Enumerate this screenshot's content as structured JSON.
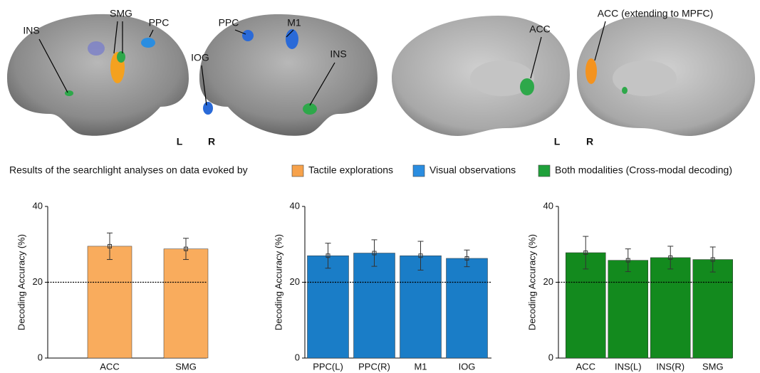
{
  "brain_figure": {
    "labels": [
      "INS",
      "SMG",
      "PPC",
      "PPC",
      "M1",
      "IOG",
      "INS",
      "L",
      "R",
      "ACC",
      "ACC (extending to MPFC)",
      "L",
      "R"
    ]
  },
  "legend": {
    "title": "Results of the searchlight analyses on data evoked by",
    "items": [
      {
        "label": "Tactile explorations",
        "color": "#f7a24b"
      },
      {
        "label": "Visual observations",
        "color": "#2a8de0"
      },
      {
        "label": "Both modalities (Cross-modal decoding)",
        "color": "#1fa03a"
      }
    ]
  },
  "chart_data": [
    {
      "type": "bar",
      "y_label": "Decoding Accuracy (%)",
      "categories": [
        "ACC",
        "SMG"
      ],
      "values": [
        29.5,
        28.8
      ],
      "errors": [
        3.5,
        2.8
      ],
      "color": "#f9ac5d",
      "ylim": [
        0,
        40
      ],
      "yticks": [
        0,
        20,
        40
      ],
      "reference_line": 20
    },
    {
      "type": "bar",
      "y_label": "Decoding Accuracy (%)",
      "categories": [
        "PPC(L)",
        "PPC(R)",
        "M1",
        "IOG"
      ],
      "values": [
        27,
        27.7,
        27,
        26.3
      ],
      "errors": [
        3.3,
        3.5,
        3.8,
        2.2
      ],
      "color": "#1a7dc7",
      "ylim": [
        0,
        40
      ],
      "yticks": [
        0,
        20,
        40
      ],
      "reference_line": 20
    },
    {
      "type": "bar",
      "y_label": "Decoding Accuracy (%)",
      "categories": [
        "ACC",
        "INS(L)",
        "INS(R)",
        "SMG"
      ],
      "values": [
        27.8,
        25.8,
        26.5,
        26
      ],
      "errors": [
        4.3,
        3,
        3,
        3.3
      ],
      "color": "#138a1e",
      "ylim": [
        0,
        40
      ],
      "yticks": [
        0,
        20,
        40
      ],
      "reference_line": 20
    }
  ]
}
